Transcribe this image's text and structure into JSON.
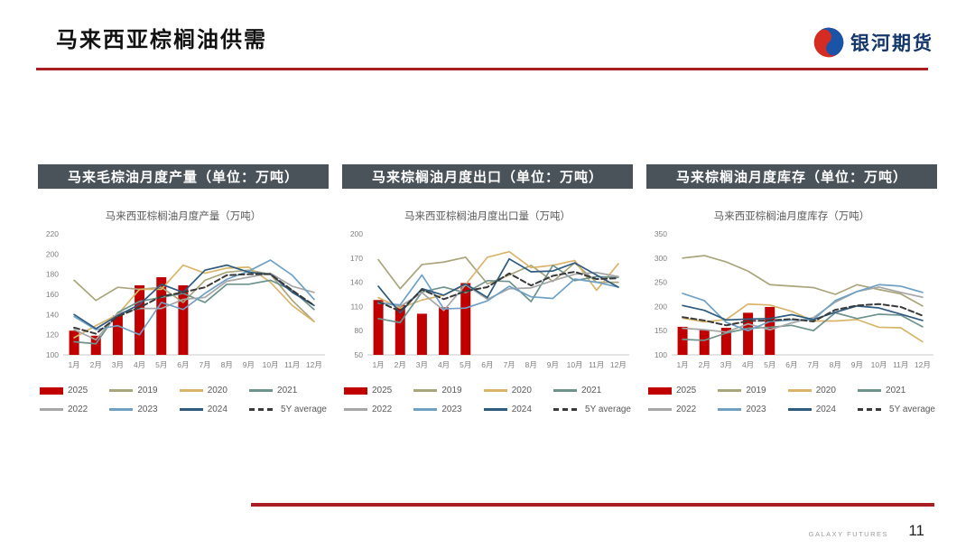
{
  "page": {
    "title": "马来西亚棕榈油供需",
    "logo_text": "银河期货",
    "footer_brand": "GALAXY FUTURES",
    "page_number": "11"
  },
  "colors": {
    "accent_red": "#A81E22",
    "header_bar": "#4A525A",
    "bar_2025": "#C00000",
    "logo_blue": "#1A54A8",
    "logo_red": "#D42B22"
  },
  "panels": [
    {
      "header": "马来毛棕油月度产量（单位：万吨）"
    },
    {
      "header": "马来棕榈油月度出口（单位：万吨）"
    },
    {
      "header": "马来棕榈油月度库存（单位：万吨）"
    }
  ],
  "chart_data": [
    {
      "type": "bar",
      "title": "马来西亚棕榈油月度产量（万吨）",
      "categories": [
        "1月",
        "2月",
        "3月",
        "4月",
        "5月",
        "6月",
        "7月",
        "8月",
        "9月",
        "10月",
        "11月",
        "12月"
      ],
      "ylim": [
        100,
        220
      ],
      "yticks": [
        100,
        120,
        140,
        160,
        180,
        200,
        220
      ],
      "grid": false,
      "legend_position": "bottom",
      "bar_series": {
        "name": "2025",
        "color": "#C00000",
        "values": [
          124,
          119,
          139,
          169,
          177,
          169
        ]
      },
      "line_series": [
        {
          "name": "2019",
          "color": "#A9A57C",
          "values": [
            174,
            154,
            167,
            165,
            167,
            152,
            174,
            182,
            184,
            180,
            154,
            133
          ]
        },
        {
          "name": "2020",
          "color": "#D8B56B",
          "values": [
            117,
            129,
            140,
            165,
            165,
            189,
            181,
            186,
            187,
            172,
            149,
            133
          ]
        },
        {
          "name": "2021",
          "color": "#6E938D",
          "values": [
            113,
            111,
            142,
            153,
            157,
            161,
            152,
            170,
            170,
            174,
            164,
            145
          ]
        },
        {
          "name": "2022",
          "color": "#A6A6A6",
          "values": [
            125,
            115,
            141,
            146,
            146,
            155,
            157,
            173,
            177,
            181,
            168,
            162
          ]
        },
        {
          "name": "2023",
          "color": "#70A1C4",
          "values": [
            138,
            125,
            129,
            120,
            152,
            145,
            161,
            175,
            183,
            194,
            179,
            155
          ]
        },
        {
          "name": "2024",
          "color": "#2E5B7F",
          "values": [
            140,
            126,
            139,
            150,
            170,
            162,
            184,
            189,
            182,
            180,
            162,
            149
          ]
        },
        {
          "name": "5Y average",
          "color": "#3A3A3A",
          "dashed": true,
          "values": [
            127,
            121,
            138,
            147,
            158,
            162,
            167,
            179,
            180,
            180,
            164,
            149
          ]
        }
      ]
    },
    {
      "type": "bar",
      "title": "马来西亚棕榈油月度出口量（万吨）",
      "categories": [
        "1月",
        "2月",
        "3月",
        "4月",
        "5月",
        "6月",
        "7月",
        "8月",
        "9月",
        "10月",
        "11月",
        "12月"
      ],
      "ylim": [
        50,
        200
      ],
      "yticks": [
        50,
        80,
        110,
        140,
        170,
        200
      ],
      "grid": false,
      "legend_position": "bottom",
      "bar_series": {
        "name": "2025",
        "color": "#C00000",
        "values": [
          118,
          112,
          101,
          109,
          139
        ]
      },
      "line_series": [
        {
          "name": "2019",
          "color": "#A9A57C",
          "values": [
            168,
            132,
            162,
            165,
            171,
            138,
            149,
            161,
            141,
            164,
            140,
            140
          ]
        },
        {
          "name": "2020",
          "color": "#D8B56B",
          "values": [
            121,
            108,
            118,
            124,
            137,
            171,
            178,
            158,
            161,
            167,
            130,
            163
          ]
        },
        {
          "name": "2021",
          "color": "#6E938D",
          "values": [
            95,
            90,
            128,
            134,
            127,
            142,
            141,
            116,
            161,
            142,
            147,
            146
          ]
        },
        {
          "name": "2022",
          "color": "#A6A6A6",
          "values": [
            116,
            110,
            127,
            105,
            137,
            119,
            132,
            133,
            142,
            150,
            152,
            147
          ]
        },
        {
          "name": "2023",
          "color": "#70A1C4",
          "values": [
            114,
            112,
            149,
            107,
            108,
            117,
            135,
            122,
            120,
            144,
            140,
            134
          ]
        },
        {
          "name": "2024",
          "color": "#2E5B7F",
          "values": [
            135,
            102,
            132,
            124,
            138,
            121,
            169,
            153,
            154,
            164,
            149,
            134
          ]
        },
        {
          "name": "5Y average",
          "color": "#3A3A3A",
          "dashed": true,
          "values": [
            116,
            104,
            131,
            119,
            129,
            134,
            151,
            136,
            148,
            153,
            144,
            145
          ]
        }
      ]
    },
    {
      "type": "bar",
      "title": "马来西亚棕榈油月度库存（万吨）",
      "categories": [
        "1月",
        "2月",
        "3月",
        "4月",
        "5月",
        "6月",
        "7月",
        "8月",
        "9月",
        "10月",
        "11月",
        "12月"
      ],
      "ylim": [
        100,
        350
      ],
      "yticks": [
        100,
        150,
        200,
        250,
        300,
        350
      ],
      "grid": false,
      "legend_position": "bottom",
      "bar_series": {
        "name": "2025",
        "color": "#C00000",
        "values": [
          158,
          151,
          156,
          187,
          199
        ]
      },
      "line_series": [
        {
          "name": "2019",
          "color": "#A9A57C",
          "values": [
            300,
            305,
            292,
            273,
            245,
            242,
            239,
            225,
            245,
            235,
            226,
            201
          ]
        },
        {
          "name": "2020",
          "color": "#D8B56B",
          "values": [
            176,
            168,
            173,
            205,
            203,
            190,
            170,
            170,
            173,
            157,
            156,
            127
          ]
        },
        {
          "name": "2021",
          "color": "#6E938D",
          "values": [
            132,
            130,
            145,
            155,
            157,
            161,
            150,
            187,
            175,
            184,
            182,
            158
          ]
        },
        {
          "name": "2022",
          "color": "#A6A6A6",
          "values": [
            155,
            152,
            147,
            164,
            152,
            166,
            177,
            209,
            231,
            240,
            229,
            219
          ]
        },
        {
          "name": "2023",
          "color": "#70A1C4",
          "values": [
            227,
            212,
            167,
            150,
            169,
            172,
            173,
            212,
            231,
            245,
            242,
            229
          ]
        },
        {
          "name": "2024",
          "color": "#2E5B7F",
          "values": [
            202,
            192,
            172,
            174,
            175,
            183,
            173,
            188,
            201,
            197,
            184,
            171
          ]
        },
        {
          "name": "5Y average",
          "color": "#3A3A3A",
          "dashed": true,
          "values": [
            178,
            171,
            161,
            170,
            171,
            174,
            169,
            193,
            202,
            205,
            199,
            181
          ]
        }
      ]
    }
  ]
}
